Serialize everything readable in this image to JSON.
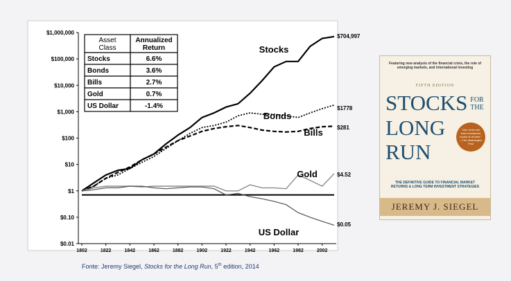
{
  "chart_data": {
    "type": "line",
    "x": [
      1802,
      1812,
      1822,
      1832,
      1842,
      1852,
      1862,
      1872,
      1882,
      1892,
      1902,
      1912,
      1922,
      1932,
      1942,
      1952,
      1962,
      1972,
      1982,
      1992,
      2002,
      2012
    ],
    "xlim": [
      1802,
      2012
    ],
    "xticks": [
      1802,
      1822,
      1842,
      1862,
      1882,
      1902,
      1922,
      1942,
      1962,
      1982,
      2002
    ],
    "ylim": [
      0.01,
      1000000
    ],
    "log_y": true,
    "yticks": [
      {
        "value": 0.01,
        "label": "$0.01"
      },
      {
        "value": 0.1,
        "label": "$0.10"
      },
      {
        "value": 1,
        "label": "$1"
      },
      {
        "value": 10,
        "label": "$10"
      },
      {
        "value": 100,
        "label": "$100"
      },
      {
        "value": 1000,
        "label": "$1,000"
      },
      {
        "value": 10000,
        "label": "$10,000"
      },
      {
        "value": 100000,
        "label": "$100,000"
      },
      {
        "value": 1000000,
        "label": "$1,000,000"
      }
    ],
    "hline": 0.7,
    "series": [
      {
        "name": "Stocks",
        "color": "#000000",
        "values": [
          1,
          2,
          4,
          6,
          7,
          15,
          25,
          60,
          130,
          250,
          600,
          900,
          1500,
          2000,
          5000,
          15000,
          50000,
          80000,
          80000,
          300000,
          600000,
          704997
        ],
        "end_label": "$704,997"
      },
      {
        "name": "Bonds",
        "color": "#000000",
        "values": [
          1,
          1.5,
          3,
          4,
          7,
          12,
          20,
          40,
          80,
          150,
          250,
          300,
          400,
          700,
          900,
          800,
          800,
          700,
          600,
          900,
          1300,
          1778
        ],
        "end_label": "$1778"
      },
      {
        "name": "Bills",
        "color": "#000000",
        "values": [
          1,
          1.5,
          3,
          5,
          8,
          15,
          25,
          45,
          80,
          120,
          180,
          230,
          270,
          300,
          250,
          200,
          180,
          170,
          180,
          230,
          270,
          281
        ],
        "end_label": "$281"
      },
      {
        "name": "Gold",
        "color": "#8a8a8a",
        "values": [
          1,
          1.3,
          1.5,
          1.5,
          1.5,
          1.4,
          1.5,
          1.5,
          1.5,
          1.5,
          1.5,
          1.5,
          1.0,
          1.0,
          1.7,
          1.3,
          1.3,
          1.2,
          4,
          2.5,
          1.5,
          4.52
        ],
        "end_label": "$4.52"
      },
      {
        "name": "US Dollar",
        "color": "#505050",
        "values": [
          1,
          1.1,
          1.3,
          1.3,
          1.5,
          1.5,
          1.3,
          1.2,
          1.3,
          1.4,
          1.4,
          1.2,
          0.7,
          0.8,
          0.6,
          0.5,
          0.4,
          0.3,
          0.15,
          0.1,
          0.07,
          0.05
        ],
        "end_label": "$0.05"
      }
    ],
    "table": {
      "header": [
        "Asset Class",
        "Annualized Return"
      ],
      "rows": [
        [
          "Stocks",
          "6.6%"
        ],
        [
          "Bonds",
          "3.6%"
        ],
        [
          "Bills",
          "2.7%"
        ],
        [
          "Gold",
          "0.7%"
        ],
        [
          "US Dollar",
          "-1.4%"
        ]
      ]
    }
  },
  "source": {
    "prefix": "Fonte: Jeremy Siegel, ",
    "title": "Stocks for the Long Run",
    "middle": ", 5",
    "sup": "th",
    "suffix": " edition, 2014"
  },
  "book": {
    "tagline": "Featuring new analysis of the financial crisis, the role of emerging markets, and international investing",
    "edition": "FIFTH EDITION",
    "title_a": "STOCKS",
    "title_b": "FOR THE",
    "title_c": "LONG",
    "title_d": "RUN",
    "badge": "\"One of the ten best investment books of all time.\" —The Washington Post",
    "subtitle": "THE DEFINITIVE GUIDE TO FINANCIAL MARKET RETURNS & LONG TERM INVESTMENT STRATEGIES",
    "author": "JEREMY J. SIEGEL"
  }
}
